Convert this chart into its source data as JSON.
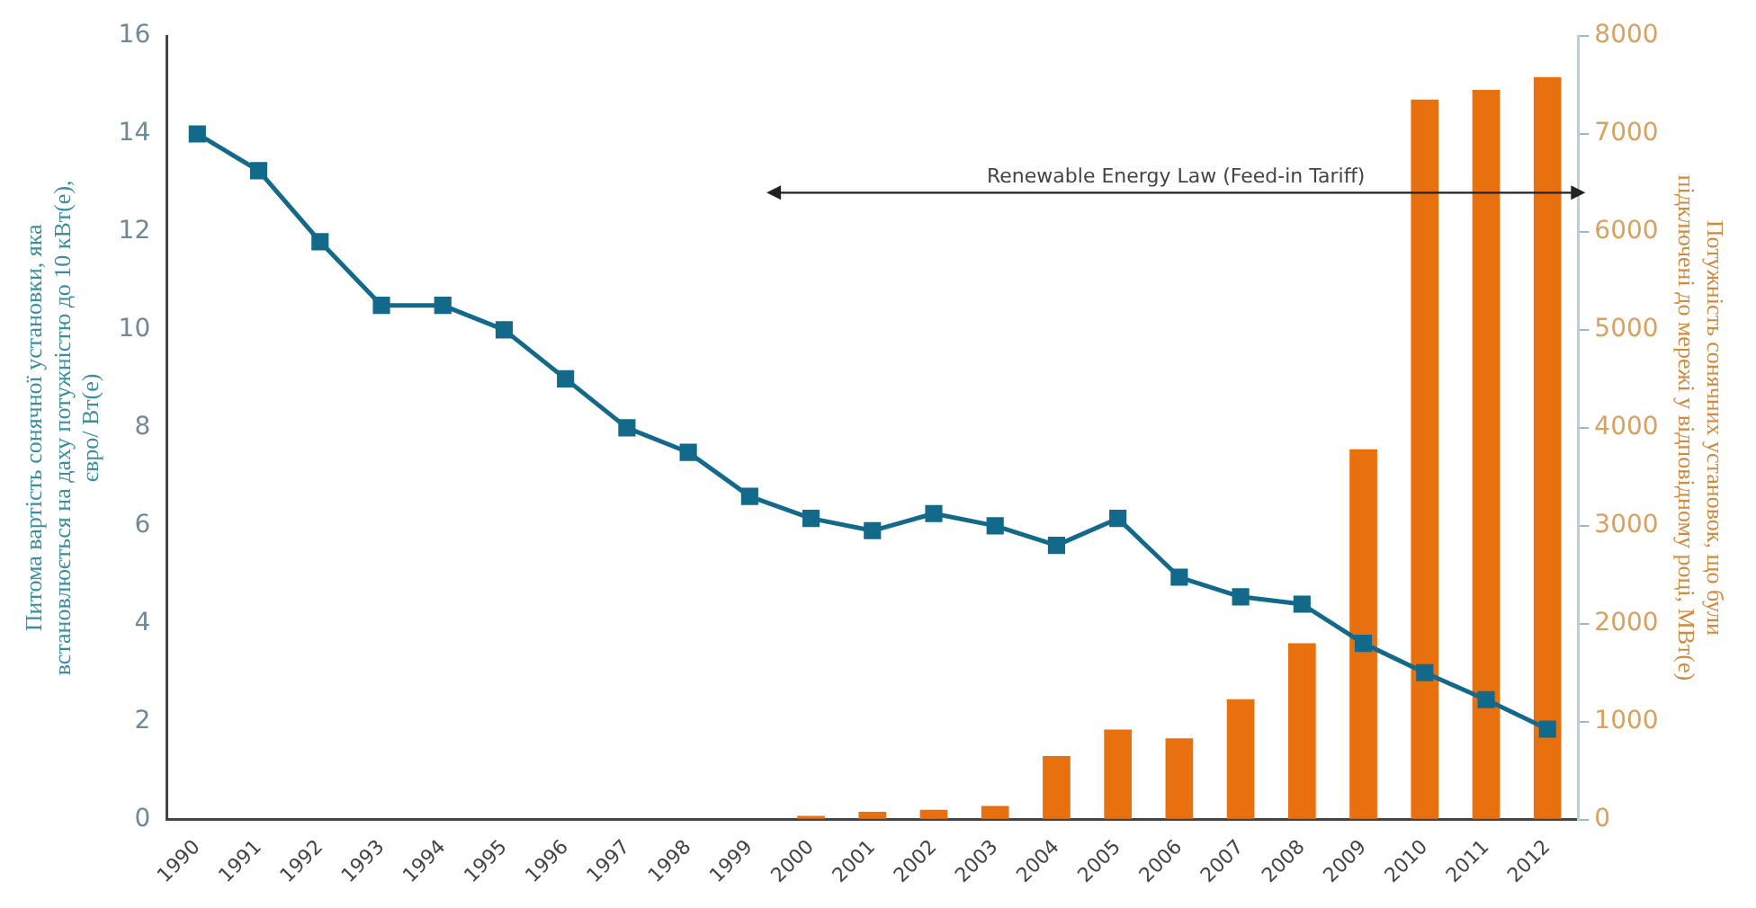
{
  "chart_data": {
    "type": "line",
    "categories": [
      "1990",
      "1991",
      "1992",
      "1993",
      "1994",
      "1995",
      "1996",
      "1997",
      "1998",
      "1999",
      "2000",
      "2001",
      "2002",
      "2003",
      "2004",
      "2005",
      "2006",
      "2007",
      "2008",
      "2009",
      "2010",
      "2011",
      "2012"
    ],
    "series": [
      {
        "color": "#13698a",
        "values": [
          14,
          13.25,
          11.8,
          10.5,
          10.5,
          10,
          9,
          8,
          7.5,
          6.6,
          6.15,
          5.9,
          6.25,
          6.0,
          5.6,
          6.15,
          4.95,
          4.55,
          4.4,
          3.6,
          3.0,
          2.45,
          1.85
        ]
      },
      {
        "type": "bar",
        "axis": "y2",
        "color": "#e8700f",
        "values": [
          null,
          null,
          null,
          null,
          null,
          null,
          null,
          null,
          null,
          null,
          40,
          80,
          100,
          140,
          650,
          920,
          830,
          1230,
          1800,
          3780,
          7350,
          7450,
          7580
        ]
      }
    ],
    "ylabel": "Питома вартість сонячної установки, яка\nвстановлюється на даху потужністю до 10 кВт(е),\nєвро/ Вт(е)",
    "y2label": "Потужність сонячних установок, що були\nпідключені до мережі у відповідному році, МВт(е)",
    "ylim": [
      0,
      16
    ],
    "yticks": [
      0,
      2,
      4,
      6,
      8,
      10,
      12,
      14,
      16
    ],
    "y2lim": [
      0,
      8000
    ],
    "y2ticks": [
      0,
      1000,
      2000,
      3000,
      4000,
      5000,
      6000,
      7000,
      8000
    ],
    "annotations": [
      "Renewable Energy Law (Feed-in Tariff)"
    ],
    "marker": "square",
    "line_style": "solid",
    "grid": false,
    "legend": false
  }
}
